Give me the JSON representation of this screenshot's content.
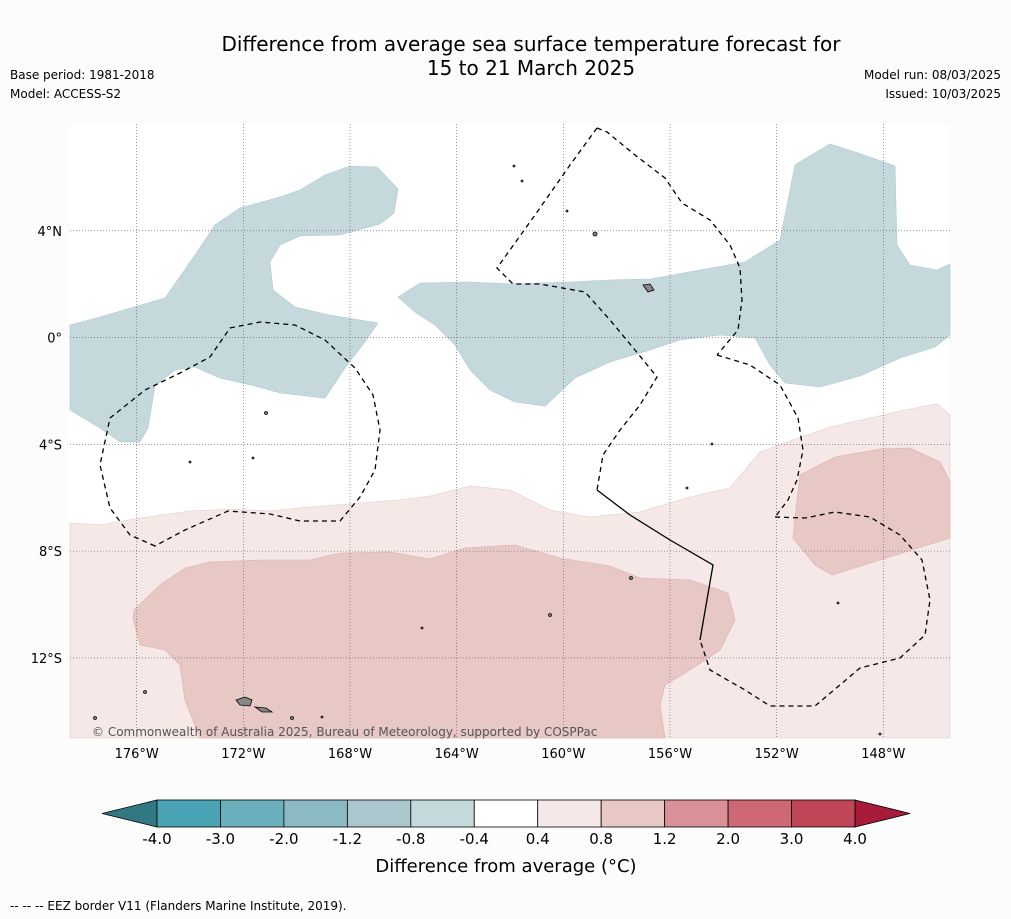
{
  "title": {
    "line1": "Difference from average sea surface temperature forecast for",
    "line2": "15 to 21 March 2025"
  },
  "meta": {
    "base_period": "Base period: 1981-2018",
    "model": "Model: ACCESS-S2",
    "model_run": "Model run: 08/03/2025",
    "issued": "Issued: 10/03/2025"
  },
  "map": {
    "lon_range": [
      -178.5,
      -145.5
    ],
    "lat_range": [
      -15,
      8
    ],
    "lon_ticks": [
      -176,
      -172,
      -168,
      -164,
      -160,
      -156,
      -152,
      -148
    ],
    "lon_labels": [
      "176°W",
      "172°W",
      "168°W",
      "164°W",
      "160°W",
      "156°W",
      "152°W",
      "148°W"
    ],
    "lat_ticks": [
      4,
      0,
      -4,
      -8,
      -12
    ],
    "lat_labels": [
      "4°N",
      "0°",
      "4°S",
      "8°S",
      "12°S"
    ],
    "copyright": "© Commonwealth of Australia 2025, Bureau of Meteorology, supported by COSPPac"
  },
  "colorbar": {
    "labels": [
      "-4.0",
      "-3.0",
      "-2.0",
      "-1.2",
      "-0.8",
      "-0.4",
      "0.4",
      "0.8",
      "1.2",
      "2.0",
      "3.0",
      "4.0"
    ],
    "colors": [
      "#4aa3b4",
      "#6bafbd",
      "#8bbac5",
      "#aac7ce",
      "#c5d9dd",
      "#ffffff",
      "#f5e8e7",
      "#e8c8c4",
      "#d99197",
      "#cd6874",
      "#bf4657"
    ],
    "under_color": "#317883",
    "over_color": "#a81b3a",
    "title": "Difference from average (°C)"
  },
  "legend_note": "--  --  -- EEZ border V11 (Flanders Marine Institute, 2019)."
}
